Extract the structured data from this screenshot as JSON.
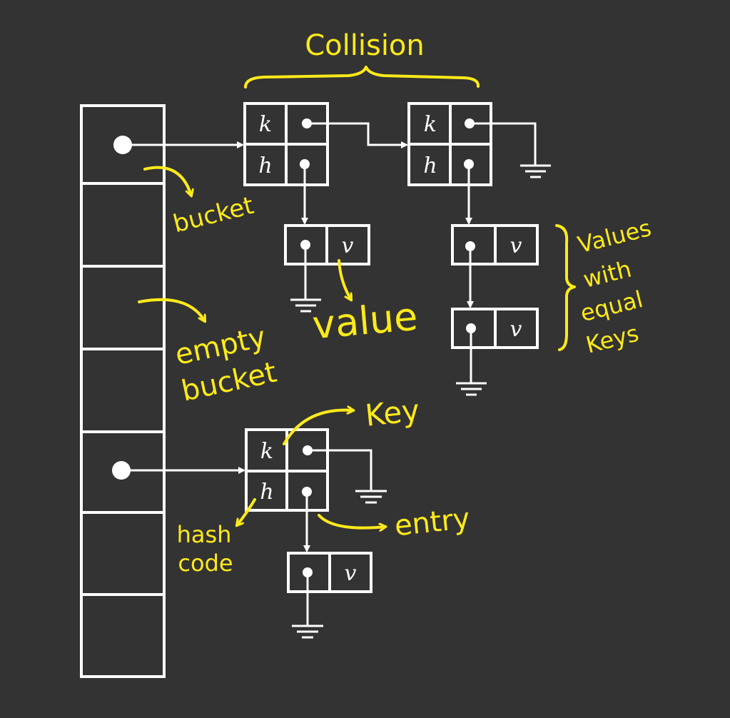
{
  "colors": {
    "background": "#333333",
    "structure": "#ffffff",
    "annotation": "#ffea1a"
  },
  "cell_labels": {
    "key": "k",
    "hash": "h",
    "value": "v"
  },
  "annotations": {
    "collision": "Collision",
    "bucket": "bucket",
    "empty_bucket_line1": "empty",
    "empty_bucket_line2": "bucket",
    "value": "value",
    "values_line1": "Values",
    "values_line2": "with",
    "values_line3": "equal",
    "values_line4": "Keys",
    "key": "Key",
    "entry": "entry",
    "hash_code_line1": "hash",
    "hash_code_line2": "code"
  }
}
